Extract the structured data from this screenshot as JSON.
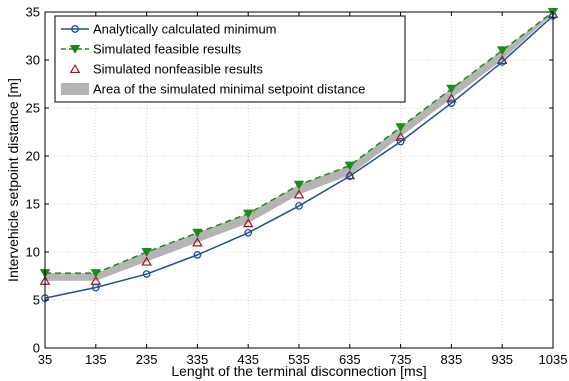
{
  "chart_data": {
    "type": "line",
    "xlabel": "Lenght of the terminal disconnection [ms]",
    "ylabel": "Intervehicle setpoint distance [m]",
    "xlim": [
      35,
      1035
    ],
    "ylim": [
      0,
      35
    ],
    "x_ticks": [
      35,
      135,
      235,
      335,
      435,
      535,
      635,
      735,
      835,
      935,
      1035
    ],
    "y_ticks": [
      0,
      5,
      10,
      15,
      20,
      25,
      30,
      35
    ],
    "grid": true,
    "legend_position": "top-left",
    "x": [
      35,
      135,
      235,
      335,
      435,
      535,
      635,
      735,
      835,
      935,
      1035
    ],
    "series": [
      {
        "name": "Analytically calculated minimum",
        "values": [
          5.2,
          6.3,
          7.7,
          9.7,
          12.0,
          14.8,
          17.9,
          21.5,
          25.5,
          29.8,
          34.6
        ],
        "color": "#1f4e9a",
        "marker": "circle",
        "line": "solid"
      },
      {
        "name": "Simulated feasible results",
        "values": [
          7.8,
          7.8,
          10.0,
          12.0,
          14.0,
          17.0,
          19.0,
          23.0,
          27.0,
          31.0,
          35.0
        ],
        "color": "#1a8a1a",
        "marker": "triangle-down",
        "line": "dashed"
      },
      {
        "name": "Simulated nonfeasible results",
        "values": [
          7.0,
          7.0,
          9.0,
          11.0,
          13.0,
          16.0,
          18.0,
          22.0,
          26.0,
          30.0,
          34.8
        ],
        "color": "#a01818",
        "marker": "triangle-up",
        "line": "none"
      },
      {
        "name": "Area of the simulated minimal setpoint distance",
        "lower": [
          7.0,
          7.0,
          9.0,
          11.0,
          13.0,
          16.0,
          18.0,
          22.0,
          26.0,
          30.0,
          34.8
        ],
        "upper": [
          7.8,
          7.8,
          10.0,
          12.0,
          14.0,
          17.0,
          19.0,
          23.0,
          27.0,
          31.0,
          35.0
        ],
        "color": "#b4b4b4",
        "marker": "none",
        "line": "area"
      }
    ]
  }
}
